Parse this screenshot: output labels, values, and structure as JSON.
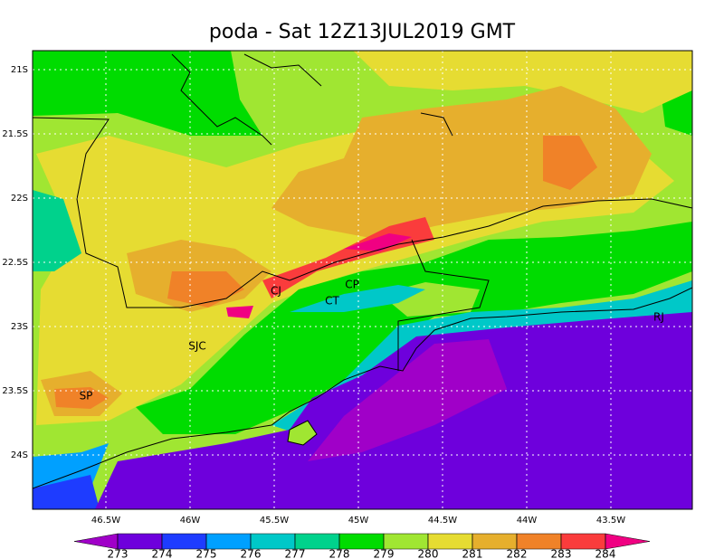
{
  "title": "poda - Sat 12Z13JUL2019 GMT",
  "map": {
    "lat_labels": [
      "21S",
      "21.5S",
      "22S",
      "22.5S",
      "23S",
      "23.5S",
      "24S"
    ],
    "lon_labels": [
      "46.5W",
      "46W",
      "45.5W",
      "45W",
      "44.5W",
      "44W",
      "43.5W"
    ],
    "places": [
      "CJ",
      "CP",
      "CT",
      "SJC",
      "SP",
      "RJ"
    ]
  },
  "colorbar": {
    "levels": [
      273,
      274,
      275,
      276,
      277,
      278,
      279,
      280,
      281,
      282,
      283,
      284
    ],
    "colors": [
      "#a000c8",
      "#6e00dc",
      "#1e3cff",
      "#00a0ff",
      "#00c8c8",
      "#00d28c",
      "#00dc00",
      "#a0e632",
      "#e6dc32",
      "#e6af2d",
      "#f08228",
      "#fa3c3c",
      "#f00082"
    ]
  }
}
